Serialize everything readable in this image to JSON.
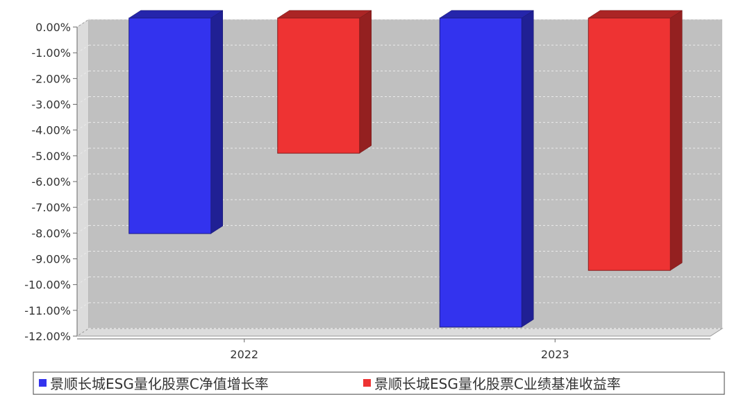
{
  "chart_data": {
    "type": "bar",
    "categories": [
      "2022",
      "2023"
    ],
    "series": [
      {
        "name": "景顺长城ESG量化股票C净值增长率",
        "values": [
          -8.02,
          -11.65
        ],
        "color": "#3333ee"
      },
      {
        "name": "景顺长城ESG量化股票C业绩基准收益率",
        "values": [
          -4.9,
          -9.45
        ],
        "color": "#ee3333"
      }
    ],
    "ylim": [
      -12,
      0
    ],
    "yticks": [
      "0.00%",
      "-1.00%",
      "-2.00%",
      "-3.00%",
      "-4.00%",
      "-5.00%",
      "-6.00%",
      "-7.00%",
      "-8.00%",
      "-9.00%",
      "-10.00%",
      "-11.00%",
      "-12.00%"
    ],
    "grid": true,
    "legend": "bottom",
    "plot_background": "#c0c0c0"
  }
}
